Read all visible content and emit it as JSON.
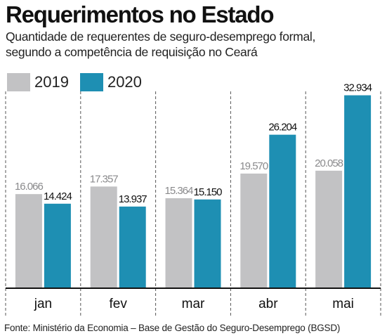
{
  "title": "Requerimentos no Estado",
  "subtitle_line1": "Quantidade de requerentes de seguro-desemprego formal,",
  "subtitle_line2": "segundo a competência de requisição no Ceará",
  "footer": "Fonte: Ministério da Economia – Base de Gestão do Seguro-Desemprego (BGSD)",
  "colors": {
    "2019": "#c2c2c4",
    "2020": "#1e8fb3"
  },
  "chart_data": {
    "type": "bar",
    "categories": [
      "jan",
      "fev",
      "mar",
      "abr",
      "mai"
    ],
    "series": [
      {
        "name": "2019",
        "values": [
          16066,
          17357,
          15364,
          19570,
          20058
        ],
        "labels": [
          "16.066",
          "17.357",
          "15.364",
          "19.570",
          "20.058"
        ]
      },
      {
        "name": "2020",
        "values": [
          14424,
          13937,
          15150,
          26204,
          32934
        ],
        "labels": [
          "14.424",
          "13.937",
          "15.150",
          "26.204",
          "32.934"
        ]
      }
    ],
    "ylim": [
      0,
      36000
    ],
    "legend": "top-left",
    "grid": false
  }
}
